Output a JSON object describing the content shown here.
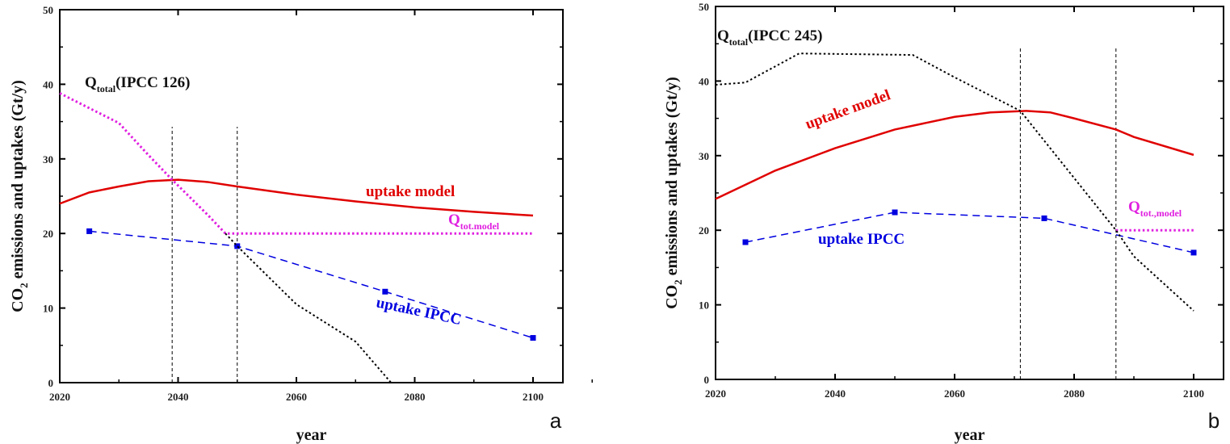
{
  "chart_data": [
    {
      "type": "line",
      "panel_label": "a",
      "xlabel": "year",
      "ylabel": "CO2 emissions and uptakes (Gt/y)",
      "ylabel_main": "CO",
      "ylabel_sub": "2",
      "ylabel_rest": " emissions and uptakes (Gt/y)",
      "xlim": [
        2020,
        2105
      ],
      "ylim": [
        0,
        50
      ],
      "xticks": [
        2020,
        2040,
        2060,
        2080,
        2100
      ],
      "yticks": [
        0,
        10,
        20,
        30,
        40,
        50
      ],
      "colors": {
        "model": "#e00000",
        "ipcc": "#0000e0",
        "qmodel": "#e020e0",
        "qtotal": "#000000"
      },
      "series": [
        {
          "name": "uptake model",
          "x": [
            2020,
            2025,
            2030,
            2035,
            2040,
            2045,
            2050,
            2060,
            2070,
            2080,
            2090,
            2100
          ],
          "y": [
            24.0,
            25.5,
            26.3,
            27.0,
            27.2,
            26.9,
            26.3,
            25.2,
            24.3,
            23.5,
            22.9,
            22.4
          ]
        },
        {
          "name": "uptake IPCC",
          "x": [
            2025,
            2050,
            2075,
            2100
          ],
          "y": [
            20.3,
            18.3,
            12.2,
            6.0
          ]
        },
        {
          "name": "Q_tot,model",
          "x": [
            2020,
            2025,
            2030,
            2035,
            2039,
            2045,
            2048,
            2100
          ],
          "y": [
            38.8,
            36.8,
            34.8,
            30.5,
            27.2,
            22.5,
            20,
            20
          ]
        },
        {
          "name": "Q_total(IPCC 126)",
          "x": [
            2048,
            2050,
            2060,
            2070,
            2076
          ],
          "y": [
            20,
            18.3,
            10.5,
            5.5,
            0
          ]
        }
      ],
      "vlines": [
        2039,
        2050
      ],
      "vline_top": 34.3,
      "labels": {
        "qtotal_main": "Q",
        "qtotal_sub": "total",
        "qtotal_rest": "(IPCC 126)",
        "model": "uptake model",
        "ipcc": "uptake IPCC",
        "qmodel_main": "Q",
        "qmodel_sub": "tot.model"
      }
    },
    {
      "type": "line",
      "panel_label": "b",
      "xlabel": "year",
      "ylabel": "CO2 emissions and uptakes (Gt/y)",
      "ylabel_main": "CO",
      "ylabel_sub": "2",
      "ylabel_rest": " emissions and uptakes (Gt/y)",
      "xlim": [
        2020,
        2105
      ],
      "ylim": [
        0,
        50
      ],
      "xticks": [
        2020,
        2040,
        2060,
        2080,
        2100
      ],
      "yticks": [
        0,
        10,
        20,
        30,
        40,
        50
      ],
      "colors": {
        "model": "#e00000",
        "ipcc": "#0000e0",
        "qmodel": "#e020e0",
        "qtotal": "#000000"
      },
      "series": [
        {
          "name": "uptake model",
          "x": [
            2020,
            2030,
            2040,
            2050,
            2060,
            2066,
            2072,
            2076,
            2080,
            2087,
            2090,
            2100
          ],
          "y": [
            24.2,
            28,
            31,
            33.5,
            35.2,
            35.8,
            36,
            35.8,
            35,
            33.5,
            32.5,
            30.1
          ]
        },
        {
          "name": "uptake IPCC",
          "x": [
            2025,
            2050,
            2075,
            2100
          ],
          "y": [
            18.4,
            22.4,
            21.6,
            17.0
          ]
        },
        {
          "name": "Q_tot,model",
          "x": [
            2087,
            2100
          ],
          "y": [
            20,
            20
          ]
        },
        {
          "name": "Q_total(IPCC 245)",
          "x": [
            2020,
            2025,
            2034,
            2053,
            2060,
            2071,
            2080,
            2087,
            2090,
            2100
          ],
          "y": [
            39.5,
            39.8,
            43.7,
            43.5,
            40.5,
            36,
            27,
            20,
            16.5,
            9.2
          ]
        }
      ],
      "vlines": [
        2071,
        2087
      ],
      "vline_top": 44.5,
      "labels": {
        "qtotal_main": "Q",
        "qtotal_sub": "total",
        "qtotal_rest": "(IPCC 245)",
        "model": "uptake model",
        "ipcc": "uptake IPCC",
        "qmodel_main": "Q",
        "qmodel_sub": "tot.,model"
      }
    }
  ]
}
